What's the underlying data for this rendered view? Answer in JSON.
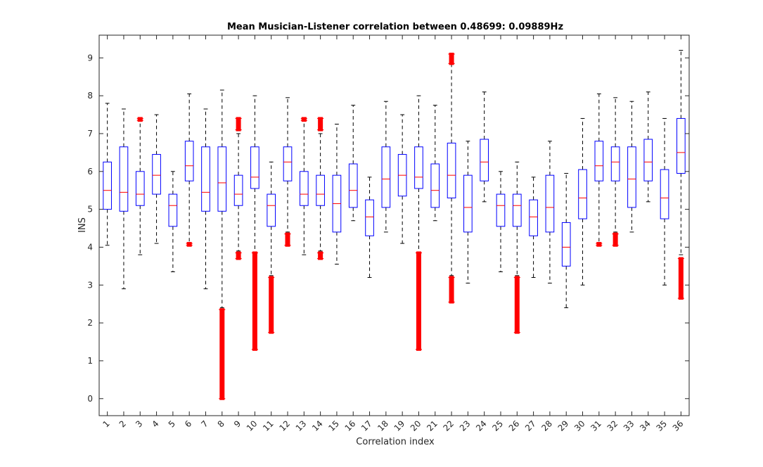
{
  "chart_data": {
    "type": "box",
    "title": "Mean Musician-Listener correlation between 0.48699: 0.09889Hz",
    "xlabel": "Correlation index",
    "ylabel": "INS",
    "ylim": [
      -0.45,
      9.6
    ],
    "yticks": [
      0,
      1,
      2,
      3,
      4,
      5,
      6,
      7,
      8,
      9
    ],
    "grid": false,
    "box_color": "#0000ff",
    "median_color": "#ff0000",
    "outlier_color": "#ff0000",
    "whisker_color": "#000000",
    "categories": [
      "1",
      "2",
      "3",
      "4",
      "5",
      "6",
      "7",
      "8",
      "9",
      "10",
      "11",
      "12",
      "13",
      "14",
      "15",
      "16",
      "17",
      "18",
      "19",
      "20",
      "21",
      "22",
      "23",
      "24",
      "25",
      "26",
      "27",
      "28",
      "29",
      "30",
      "31",
      "32",
      "33",
      "34",
      "35",
      "36"
    ],
    "boxes": [
      {
        "q1": 5.0,
        "median": 5.5,
        "q3": 6.25,
        "wlo": 4.05,
        "whi": 7.8,
        "outliers": []
      },
      {
        "q1": 4.95,
        "median": 5.45,
        "q3": 6.65,
        "wlo": 2.9,
        "whi": 7.65,
        "outliers": []
      },
      {
        "q1": 5.1,
        "median": 5.4,
        "q3": 6.0,
        "wlo": 3.8,
        "whi": 7.35,
        "outliers": [
          [
            7.35,
            7.4
          ]
        ]
      },
      {
        "q1": 5.4,
        "median": 5.9,
        "q3": 6.45,
        "wlo": 4.1,
        "whi": 7.5,
        "outliers": []
      },
      {
        "q1": 4.55,
        "median": 5.1,
        "q3": 5.4,
        "wlo": 3.35,
        "whi": 6.0,
        "outliers": []
      },
      {
        "q1": 5.75,
        "median": 6.15,
        "q3": 6.8,
        "wlo": 4.1,
        "whi": 8.05,
        "outliers": [
          [
            4.05,
            4.1
          ]
        ]
      },
      {
        "q1": 4.95,
        "median": 5.45,
        "q3": 6.65,
        "wlo": 2.9,
        "whi": 7.65,
        "outliers": []
      },
      {
        "q1": 4.95,
        "median": 5.7,
        "q3": 6.65,
        "wlo": 2.4,
        "whi": 8.15,
        "outliers": [
          [
            0.0,
            2.35
          ]
        ]
      },
      {
        "q1": 5.1,
        "median": 5.4,
        "q3": 5.9,
        "wlo": 3.9,
        "whi": 7.0,
        "outliers": [
          [
            7.1,
            7.4
          ],
          [
            3.7,
            3.85
          ]
        ]
      },
      {
        "q1": 5.55,
        "median": 5.85,
        "q3": 6.65,
        "wlo": 3.85,
        "whi": 8.0,
        "outliers": [
          [
            1.3,
            3.85
          ]
        ]
      },
      {
        "q1": 4.55,
        "median": 5.1,
        "q3": 5.4,
        "wlo": 3.25,
        "whi": 6.25,
        "outliers": [
          [
            1.75,
            3.2
          ]
        ]
      },
      {
        "q1": 5.75,
        "median": 6.25,
        "q3": 6.65,
        "wlo": 4.4,
        "whi": 7.95,
        "outliers": [
          [
            4.05,
            4.35
          ]
        ]
      },
      {
        "q1": 5.1,
        "median": 5.4,
        "q3": 6.0,
        "wlo": 3.8,
        "whi": 7.35,
        "outliers": [
          [
            7.35,
            7.4
          ]
        ]
      },
      {
        "q1": 5.1,
        "median": 5.4,
        "q3": 5.9,
        "wlo": 3.9,
        "whi": 7.0,
        "outliers": [
          [
            7.1,
            7.4
          ],
          [
            3.7,
            3.85
          ]
        ]
      },
      {
        "q1": 4.4,
        "median": 5.15,
        "q3": 5.9,
        "wlo": 3.55,
        "whi": 7.25,
        "outliers": []
      },
      {
        "q1": 5.05,
        "median": 5.5,
        "q3": 6.2,
        "wlo": 4.7,
        "whi": 7.75,
        "outliers": []
      },
      {
        "q1": 4.3,
        "median": 4.8,
        "q3": 5.25,
        "wlo": 3.2,
        "whi": 5.85,
        "outliers": []
      },
      {
        "q1": 5.05,
        "median": 5.8,
        "q3": 6.65,
        "wlo": 4.4,
        "whi": 7.85,
        "outliers": []
      },
      {
        "q1": 5.35,
        "median": 5.9,
        "q3": 6.45,
        "wlo": 4.1,
        "whi": 7.5,
        "outliers": []
      },
      {
        "q1": 5.55,
        "median": 5.85,
        "q3": 6.65,
        "wlo": 3.85,
        "whi": 8.0,
        "outliers": [
          [
            1.3,
            3.85
          ]
        ]
      },
      {
        "q1": 5.05,
        "median": 5.5,
        "q3": 6.2,
        "wlo": 4.7,
        "whi": 7.75,
        "outliers": []
      },
      {
        "q1": 5.3,
        "median": 5.9,
        "q3": 6.75,
        "wlo": 3.25,
        "whi": 8.85,
        "outliers": [
          [
            8.85,
            9.1
          ],
          [
            2.55,
            3.2
          ]
        ]
      },
      {
        "q1": 4.4,
        "median": 5.05,
        "q3": 5.9,
        "wlo": 3.05,
        "whi": 6.8,
        "outliers": []
      },
      {
        "q1": 5.75,
        "median": 6.25,
        "q3": 6.85,
        "wlo": 5.2,
        "whi": 8.1,
        "outliers": []
      },
      {
        "q1": 4.55,
        "median": 5.1,
        "q3": 5.4,
        "wlo": 3.35,
        "whi": 6.0,
        "outliers": []
      },
      {
        "q1": 4.55,
        "median": 5.1,
        "q3": 5.4,
        "wlo": 3.25,
        "whi": 6.25,
        "outliers": [
          [
            1.75,
            3.2
          ]
        ]
      },
      {
        "q1": 4.3,
        "median": 4.8,
        "q3": 5.25,
        "wlo": 3.2,
        "whi": 5.85,
        "outliers": []
      },
      {
        "q1": 4.4,
        "median": 5.05,
        "q3": 5.9,
        "wlo": 3.05,
        "whi": 6.8,
        "outliers": []
      },
      {
        "q1": 3.5,
        "median": 4.0,
        "q3": 4.65,
        "wlo": 2.4,
        "whi": 5.95,
        "outliers": []
      },
      {
        "q1": 4.75,
        "median": 5.3,
        "q3": 6.05,
        "wlo": 3.0,
        "whi": 7.4,
        "outliers": []
      },
      {
        "q1": 5.75,
        "median": 6.15,
        "q3": 6.8,
        "wlo": 4.1,
        "whi": 8.05,
        "outliers": [
          [
            4.05,
            4.1
          ]
        ]
      },
      {
        "q1": 5.75,
        "median": 6.25,
        "q3": 6.65,
        "wlo": 4.4,
        "whi": 7.95,
        "outliers": [
          [
            4.05,
            4.35
          ]
        ]
      },
      {
        "q1": 5.05,
        "median": 5.8,
        "q3": 6.65,
        "wlo": 4.4,
        "whi": 7.85,
        "outliers": []
      },
      {
        "q1": 5.75,
        "median": 6.25,
        "q3": 6.85,
        "wlo": 5.2,
        "whi": 8.1,
        "outliers": []
      },
      {
        "q1": 4.75,
        "median": 5.3,
        "q3": 6.05,
        "wlo": 3.0,
        "whi": 7.4,
        "outliers": []
      },
      {
        "q1": 5.95,
        "median": 6.5,
        "q3": 7.4,
        "wlo": 3.8,
        "whi": 9.2,
        "outliers": [
          [
            2.65,
            3.7
          ]
        ]
      }
    ]
  }
}
